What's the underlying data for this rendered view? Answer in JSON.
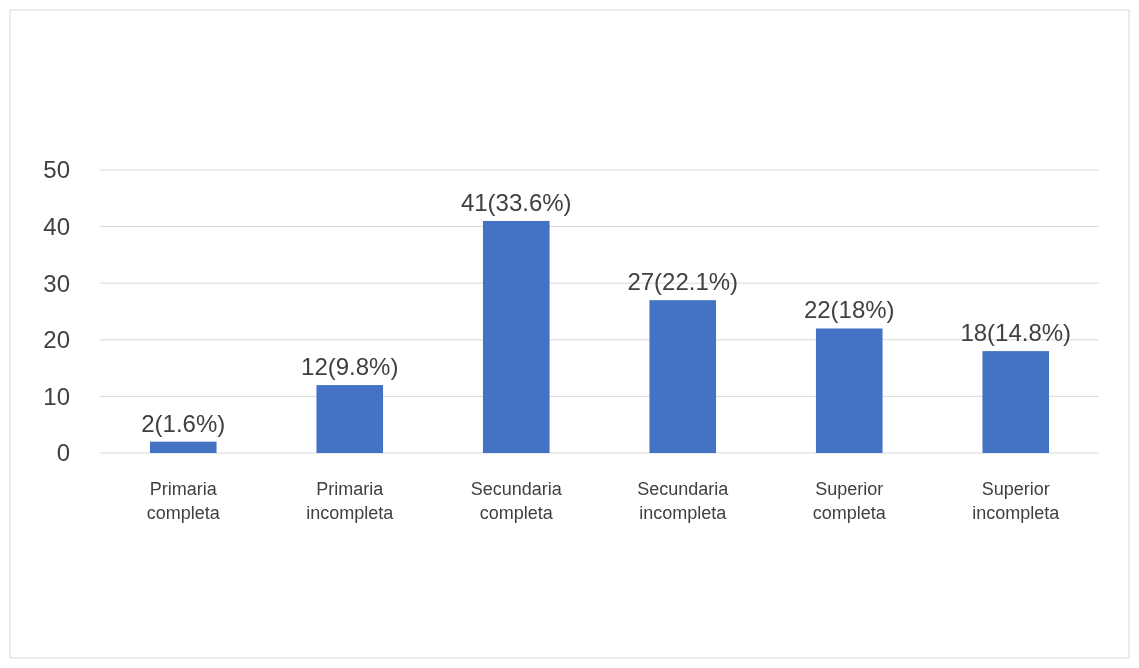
{
  "chart_data": {
    "type": "bar",
    "categories": [
      "Primaria completa",
      "Primaria incompleta",
      "Secundaria completa",
      "Secundaria incompleta",
      "Superior completa",
      "Superior incompleta"
    ],
    "values": [
      2,
      12,
      41,
      27,
      22,
      18
    ],
    "value_labels": [
      "2(1.6%)",
      "12(9.8%)",
      "41(33.6%)",
      "27(22.1%)",
      "22(18%)",
      "18(14.8%)"
    ],
    "color": "#4472c4",
    "ylim": [
      0,
      50
    ],
    "yticks": [
      0,
      10,
      20,
      30,
      40,
      50
    ],
    "grid": "y"
  }
}
